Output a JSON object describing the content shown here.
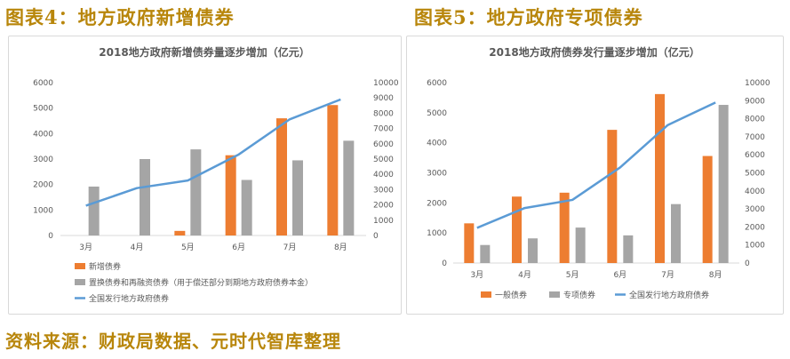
{
  "figures": {
    "left_title": "图表4：地方政府新增债券",
    "right_title": "图表5：地方政府专项债券",
    "source": "资料来源：财政局数据、元时代智库整理"
  },
  "chart_data": [
    {
      "type": "bar",
      "title": "2018地方政府新增债券量逐步增加（亿元）",
      "categories": [
        "3月",
        "4月",
        "5月",
        "6月",
        "7月",
        "8月"
      ],
      "ylim": [
        0,
        6000
      ],
      "y_ticks": [
        0,
        1000,
        2000,
        3000,
        4000,
        5000,
        6000
      ],
      "y2lim": [
        0,
        10000
      ],
      "y2_ticks": [
        0,
        1000,
        2000,
        3000,
        4000,
        5000,
        6000,
        7000,
        8000,
        9000,
        10000
      ],
      "legend_position": "bottom",
      "series": [
        {
          "name": "新增债券",
          "kind": "bar",
          "axis": "left",
          "color": "#ed7d31",
          "values": [
            0,
            0,
            180,
            3150,
            4600,
            5120
          ]
        },
        {
          "name": "置换债券和再融资债券（用于偿还部分到期地方政府债券本金）",
          "kind": "bar",
          "axis": "left",
          "color": "#a5a5a5",
          "values": [
            1920,
            3000,
            3380,
            2180,
            2950,
            3720
          ]
        },
        {
          "name": "全国发行地方政府债券",
          "kind": "line",
          "axis": "right",
          "color": "#5b9bd5",
          "values": [
            1950,
            3100,
            3600,
            5300,
            7600,
            8900
          ]
        }
      ]
    },
    {
      "type": "bar",
      "title": "2018地方政府债券发行量逐步增加（亿元）",
      "categories": [
        "3月",
        "4月",
        "5月",
        "6月",
        "7月",
        "8月"
      ],
      "ylim": [
        0,
        6000
      ],
      "y_ticks": [
        0,
        1000,
        2000,
        3000,
        4000,
        5000,
        6000
      ],
      "y2lim": [
        0,
        10000
      ],
      "y2_ticks": [
        0,
        1000,
        2000,
        3000,
        4000,
        5000,
        6000,
        7000,
        8000,
        9000,
        10000
      ],
      "legend_position": "bottom",
      "series": [
        {
          "name": "一般债券",
          "kind": "bar",
          "axis": "left",
          "color": "#ed7d31",
          "values": [
            1320,
            2210,
            2340,
            4430,
            5620,
            3560
          ]
        },
        {
          "name": "专项债券",
          "kind": "bar",
          "axis": "left",
          "color": "#a5a5a5",
          "values": [
            600,
            820,
            1180,
            920,
            1960,
            5260
          ]
        },
        {
          "name": "全国发行地方政府债券",
          "kind": "line",
          "axis": "right",
          "color": "#5b9bd5",
          "values": [
            1950,
            3050,
            3500,
            5300,
            7650,
            8900
          ]
        }
      ]
    }
  ]
}
